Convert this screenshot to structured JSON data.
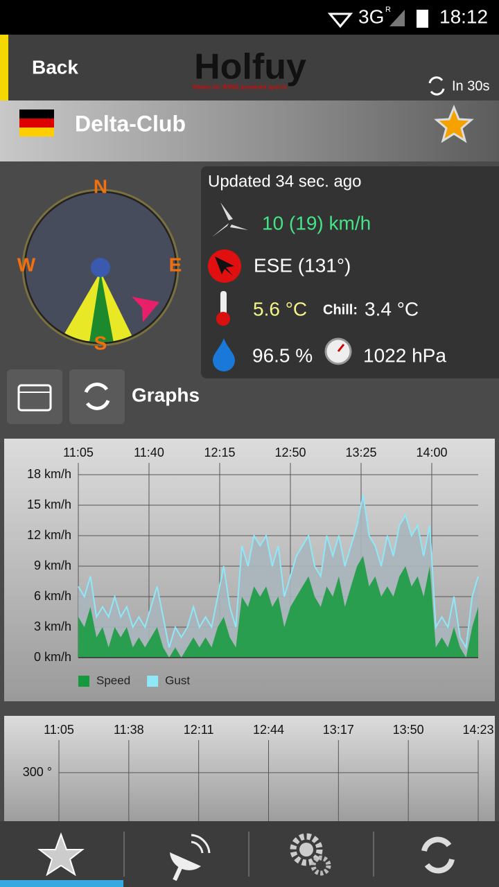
{
  "status_bar": {
    "network": "3G",
    "roaming": "R",
    "time": "18:12"
  },
  "header": {
    "back": "Back",
    "logo": "Holfuy",
    "tagline": "Meteo for WIND powered sports",
    "refresh": "In 30s"
  },
  "station": {
    "name": "Delta-Club"
  },
  "compass": {
    "north": "N",
    "east": "E",
    "south": "S",
    "west": "W"
  },
  "conditions": {
    "updated": "Updated 34 sec. ago",
    "wind": "10 (19) km/h",
    "direction": "ESE (131°)",
    "temperature": "5.6 °C",
    "chill_label": "Chill:",
    "chill": "3.4 °C",
    "humidity": "96.5 %",
    "pressure": "1022 hPa"
  },
  "graphs_label": "Graphs",
  "chart_data": [
    {
      "type": "area",
      "x": [
        "11:05",
        "11:08",
        "11:11",
        "11:14",
        "11:17",
        "11:20",
        "11:23",
        "11:26",
        "11:29",
        "11:32",
        "11:35",
        "11:38",
        "11:41",
        "11:44",
        "11:47",
        "11:50",
        "11:53",
        "11:56",
        "11:59",
        "12:02",
        "12:05",
        "12:08",
        "12:11",
        "12:14",
        "12:17",
        "12:20",
        "12:23",
        "12:26",
        "12:29",
        "12:32",
        "12:35",
        "12:38",
        "12:41",
        "12:44",
        "12:47",
        "12:50",
        "12:53",
        "12:56",
        "12:59",
        "13:02",
        "13:05",
        "13:08",
        "13:11",
        "13:14",
        "13:17",
        "13:20",
        "13:23",
        "13:26",
        "13:29",
        "13:32",
        "13:35",
        "13:38",
        "13:41",
        "13:44",
        "13:47",
        "13:50",
        "13:53",
        "13:56",
        "13:59",
        "14:02",
        "14:05",
        "14:08",
        "14:11",
        "14:14",
        "14:17",
        "14:20",
        "14:23"
      ],
      "series": [
        {
          "name": "Gust",
          "color": "#8ee8f8",
          "values": [
            7,
            6,
            8,
            4,
            5,
            4,
            6,
            4,
            5,
            3,
            4,
            3,
            5,
            7,
            4,
            1,
            3,
            2,
            3,
            5,
            3,
            4,
            3,
            6,
            9,
            5,
            3,
            11,
            9,
            12,
            11,
            12,
            9,
            11,
            6,
            8,
            10,
            11,
            12,
            9,
            8,
            12,
            10,
            12,
            9,
            11,
            13,
            16,
            12,
            11,
            9,
            12,
            10,
            13,
            14,
            12,
            13,
            10,
            13,
            3,
            4,
            3,
            6,
            2,
            1,
            6,
            8
          ]
        },
        {
          "name": "Speed",
          "color": "#149a3c",
          "values": [
            4,
            3,
            5,
            2,
            3,
            1,
            3,
            2,
            3,
            1,
            2,
            1,
            2,
            3,
            1,
            0,
            1,
            0,
            1,
            2,
            1,
            2,
            1,
            3,
            4,
            2,
            1,
            6,
            5,
            7,
            6,
            7,
            5,
            6,
            3,
            5,
            6,
            7,
            8,
            6,
            5,
            7,
            6,
            8,
            5,
            7,
            9,
            10,
            7,
            8,
            6,
            7,
            6,
            8,
            9,
            7,
            8,
            6,
            9,
            1,
            2,
            1,
            3,
            1,
            0,
            3,
            5
          ]
        }
      ],
      "xlim": [
        "11:05",
        "14:23"
      ],
      "xticks": [
        "11:05",
        "11:40",
        "12:15",
        "12:50",
        "13:25",
        "14:00"
      ],
      "ylim": [
        0,
        18
      ],
      "yticks": [
        {
          "value": 0,
          "label": "0 km/h"
        },
        {
          "value": 3,
          "label": "3 km/h"
        },
        {
          "value": 6,
          "label": "6 km/h"
        },
        {
          "value": 9,
          "label": "9 km/h"
        },
        {
          "value": 12,
          "label": "12 km/h"
        },
        {
          "value": 15,
          "label": "15 km/h"
        },
        {
          "value": 18,
          "label": "18 km/h"
        }
      ],
      "grid": true
    },
    {
      "type": "line",
      "xlim": [
        "11:05",
        "14:23"
      ],
      "xticks": [
        "11:05",
        "11:38",
        "12:11",
        "12:44",
        "13:17",
        "13:50",
        "14:23"
      ],
      "yticks": [
        {
          "value": 300,
          "label": "300 °"
        }
      ],
      "grid": true
    }
  ]
}
